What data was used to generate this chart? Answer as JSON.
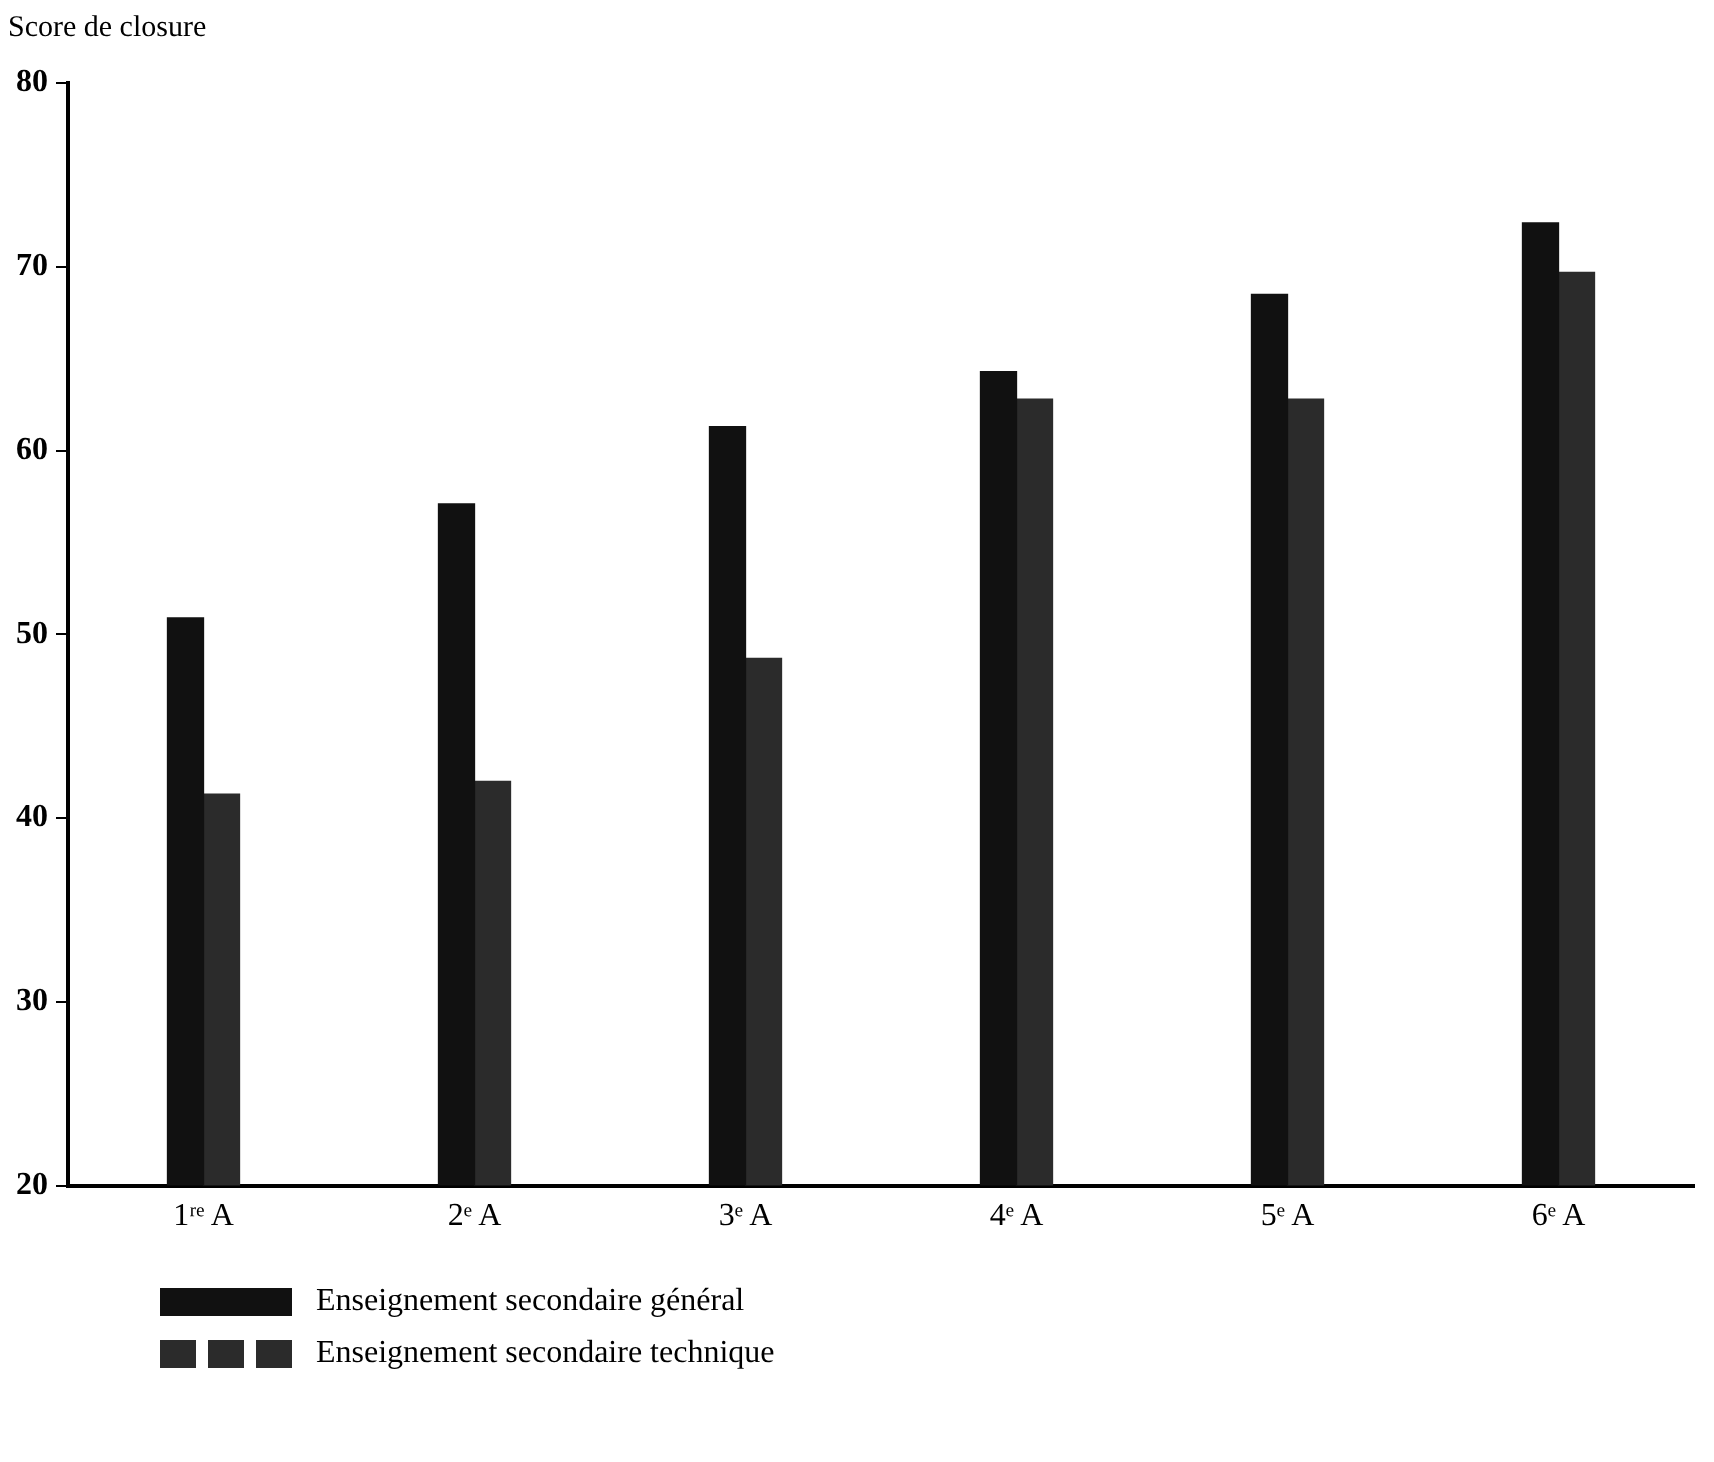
{
  "chart_data": {
    "type": "bar",
    "ylabel": "Score de closure",
    "categories": [
      "1ʳᵉ A",
      "2ᵉ A",
      "3ᵉ A",
      "4ᵉ A",
      "5ᵉ A",
      "6ᵉ A"
    ],
    "series": [
      {
        "name": "Enseignement secondaire général",
        "color": "#111111",
        "values": [
          50.9,
          57.1,
          61.3,
          64.3,
          68.5,
          72.4
        ]
      },
      {
        "name": "Enseignement secondaire technique",
        "color": "#2b2b2b",
        "values": [
          41.3,
          42,
          48.7,
          62.8,
          62.8,
          69.7
        ]
      }
    ],
    "ylim": [
      20,
      80
    ],
    "yticks": [
      20,
      30,
      40,
      50,
      60,
      70,
      80
    ],
    "grid": false,
    "legend": "bottom left"
  }
}
